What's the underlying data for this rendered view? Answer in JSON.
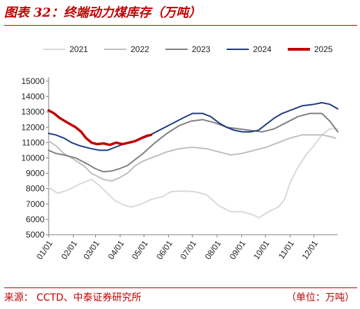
{
  "title": "图表 32：终端动力煤库存（万吨）",
  "source": "来源：  CCTD、中泰证券研究所",
  "unit": "（单位：万吨）",
  "colors": {
    "2021": "#d9d9d9",
    "2022": "#bfbfbf",
    "2023": "#808080",
    "2024": "#1f3a7a",
    "2025": "#c00000",
    "accent": "#c00000"
  },
  "chart_data": {
    "type": "line",
    "title": "",
    "xlabel": "",
    "ylabel": "",
    "ylim": [
      5000,
      15000
    ],
    "yticks": [
      5000,
      6000,
      7000,
      8000,
      9000,
      10000,
      11000,
      12000,
      13000,
      14000,
      15000
    ],
    "xlim": [
      1,
      365
    ],
    "xticks": [
      {
        "day": 1,
        "label": "01/01"
      },
      {
        "day": 32,
        "label": "02/01"
      },
      {
        "day": 60,
        "label": "03/01"
      },
      {
        "day": 91,
        "label": "04/01"
      },
      {
        "day": 121,
        "label": "05/01"
      },
      {
        "day": 152,
        "label": "06/01"
      },
      {
        "day": 182,
        "label": "07/01"
      },
      {
        "day": 213,
        "label": "08/01"
      },
      {
        "day": 244,
        "label": "09/01"
      },
      {
        "day": 274,
        "label": "10/01"
      },
      {
        "day": 305,
        "label": "11/01"
      },
      {
        "day": 335,
        "label": "12/01"
      }
    ],
    "legend_position": "top",
    "grid": false,
    "series": [
      {
        "name": "2021",
        "color_key": "2021",
        "width": 2,
        "points": [
          [
            1,
            8100
          ],
          [
            12,
            7700
          ],
          [
            25,
            7900
          ],
          [
            40,
            8300
          ],
          [
            55,
            8600
          ],
          [
            65,
            8200
          ],
          [
            75,
            7700
          ],
          [
            85,
            7200
          ],
          [
            95,
            6950
          ],
          [
            105,
            6800
          ],
          [
            118,
            7000
          ],
          [
            130,
            7300
          ],
          [
            145,
            7500
          ],
          [
            155,
            7800
          ],
          [
            170,
            7850
          ],
          [
            185,
            7800
          ],
          [
            200,
            7600
          ],
          [
            215,
            6900
          ],
          [
            230,
            6500
          ],
          [
            245,
            6500
          ],
          [
            258,
            6300
          ],
          [
            266,
            6100
          ],
          [
            278,
            6500
          ],
          [
            290,
            6800
          ],
          [
            298,
            7300
          ],
          [
            305,
            8400
          ],
          [
            315,
            9400
          ],
          [
            325,
            10200
          ],
          [
            335,
            10800
          ],
          [
            345,
            11500
          ],
          [
            355,
            11900
          ],
          [
            365,
            11900
          ]
        ]
      },
      {
        "name": "2022",
        "color_key": "2022",
        "width": 2,
        "points": [
          [
            1,
            11100
          ],
          [
            10,
            10800
          ],
          [
            20,
            10300
          ],
          [
            30,
            10000
          ],
          [
            45,
            9500
          ],
          [
            55,
            9000
          ],
          [
            70,
            8600
          ],
          [
            80,
            8500
          ],
          [
            90,
            8700
          ],
          [
            100,
            9000
          ],
          [
            110,
            9500
          ],
          [
            120,
            9800
          ],
          [
            135,
            10100
          ],
          [
            150,
            10400
          ],
          [
            165,
            10600
          ],
          [
            182,
            10700
          ],
          [
            200,
            10600
          ],
          [
            215,
            10400
          ],
          [
            230,
            10200
          ],
          [
            245,
            10300
          ],
          [
            260,
            10500
          ],
          [
            275,
            10700
          ],
          [
            290,
            11000
          ],
          [
            305,
            11300
          ],
          [
            320,
            11500
          ],
          [
            335,
            11500
          ],
          [
            345,
            11500
          ],
          [
            355,
            11400
          ],
          [
            362,
            11300
          ]
        ]
      },
      {
        "name": "2023",
        "color_key": "2023",
        "width": 2,
        "points": [
          [
            1,
            10500
          ],
          [
            10,
            10300
          ],
          [
            20,
            10200
          ],
          [
            35,
            10000
          ],
          [
            50,
            9600
          ],
          [
            60,
            9300
          ],
          [
            70,
            9100
          ],
          [
            80,
            9150
          ],
          [
            90,
            9300
          ],
          [
            100,
            9500
          ],
          [
            110,
            9900
          ],
          [
            120,
            10300
          ],
          [
            135,
            11000
          ],
          [
            150,
            11600
          ],
          [
            165,
            12100
          ],
          [
            180,
            12400
          ],
          [
            195,
            12500
          ],
          [
            210,
            12300
          ],
          [
            225,
            12000
          ],
          [
            240,
            11900
          ],
          [
            255,
            11800
          ],
          [
            270,
            11700
          ],
          [
            285,
            11900
          ],
          [
            300,
            12300
          ],
          [
            315,
            12700
          ],
          [
            330,
            12900
          ],
          [
            345,
            12900
          ],
          [
            355,
            12400
          ],
          [
            365,
            11700
          ]
        ]
      },
      {
        "name": "2024",
        "color_key": "2024",
        "width": 2,
        "points": [
          [
            1,
            11600
          ],
          [
            10,
            11500
          ],
          [
            20,
            11300
          ],
          [
            30,
            11000
          ],
          [
            40,
            10800
          ],
          [
            55,
            10600
          ],
          [
            65,
            10500
          ],
          [
            75,
            10500
          ],
          [
            85,
            10700
          ],
          [
            95,
            10900
          ],
          [
            105,
            11000
          ],
          [
            115,
            11200
          ],
          [
            125,
            11400
          ],
          [
            140,
            11800
          ],
          [
            155,
            12200
          ],
          [
            170,
            12600
          ],
          [
            182,
            12900
          ],
          [
            195,
            12900
          ],
          [
            205,
            12700
          ],
          [
            215,
            12300
          ],
          [
            225,
            12000
          ],
          [
            235,
            11800
          ],
          [
            245,
            11700
          ],
          [
            255,
            11700
          ],
          [
            265,
            11800
          ],
          [
            275,
            12200
          ],
          [
            285,
            12600
          ],
          [
            295,
            12900
          ],
          [
            305,
            13100
          ],
          [
            320,
            13400
          ],
          [
            335,
            13500
          ],
          [
            345,
            13600
          ],
          [
            355,
            13500
          ],
          [
            365,
            13200
          ]
        ]
      },
      {
        "name": "2025",
        "color_key": "2025",
        "width": 3.5,
        "points": [
          [
            1,
            13100
          ],
          [
            8,
            12900
          ],
          [
            15,
            12600
          ],
          [
            25,
            12300
          ],
          [
            35,
            12000
          ],
          [
            42,
            11700
          ],
          [
            48,
            11300
          ],
          [
            55,
            11000
          ],
          [
            62,
            10900
          ],
          [
            70,
            10950
          ],
          [
            78,
            10850
          ],
          [
            86,
            11000
          ],
          [
            94,
            10900
          ],
          [
            102,
            11000
          ],
          [
            110,
            11100
          ],
          [
            118,
            11300
          ],
          [
            125,
            11450
          ],
          [
            130,
            11500
          ]
        ]
      }
    ]
  }
}
